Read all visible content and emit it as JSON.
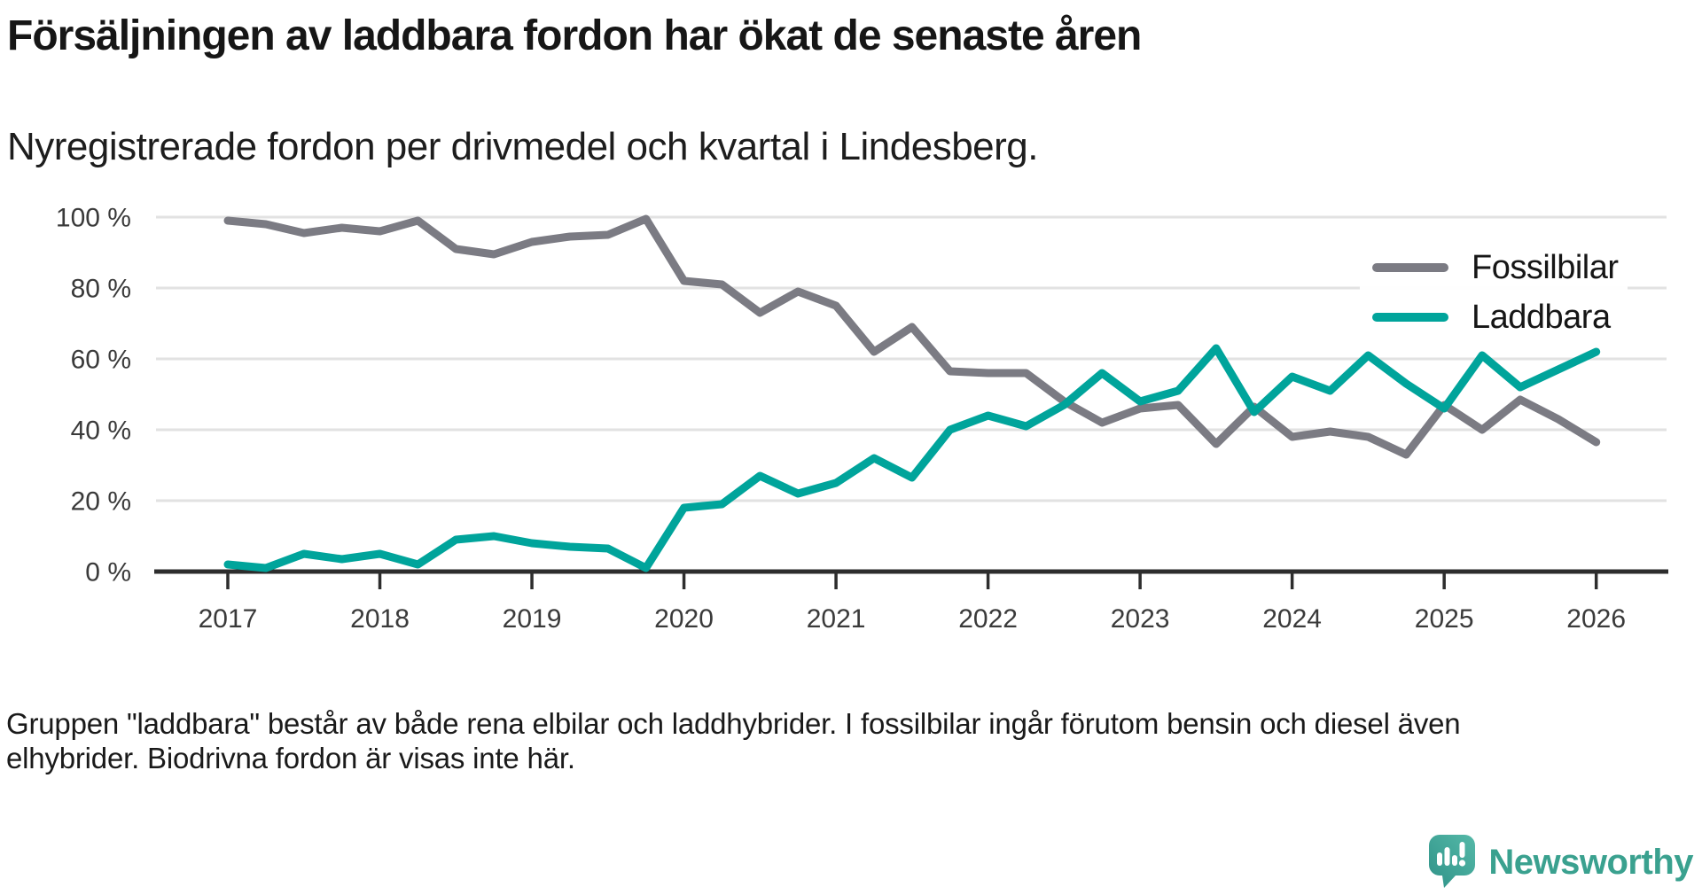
{
  "chart_data": {
    "type": "line",
    "title": "Försäljningen av laddbara fordon har ökat de senaste åren",
    "subtitle": "Nyregistrerade fordon per drivmedel och kvartal i Lindesberg.",
    "unit": "%",
    "x_start": "2017-Q1",
    "x_freq": "quarterly",
    "x_tick_labels": [
      "2017",
      "2018",
      "2019",
      "2020",
      "2021",
      "2022",
      "2023",
      "2024",
      "2025",
      "2026"
    ],
    "ylim": [
      0,
      100
    ],
    "grid": "horizontal",
    "legend_position": "top-right",
    "y_ticks": [
      {
        "value": 0,
        "label": "0 %"
      },
      {
        "value": 20,
        "label": "20 %"
      },
      {
        "value": 40,
        "label": "40 %"
      },
      {
        "value": 60,
        "label": "60 %"
      },
      {
        "value": 80,
        "label": "80 %"
      },
      {
        "value": 100,
        "label": "100 %"
      }
    ],
    "series": [
      {
        "id": "fossilbilar",
        "name": "Fossilbilar",
        "color": "#7b7b83",
        "values": [
          99,
          98,
          95.5,
          97,
          96,
          99,
          91,
          89.5,
          93,
          94.5,
          95,
          99.5,
          82,
          81,
          73,
          79,
          75,
          62,
          69,
          56.5,
          56,
          56,
          48,
          42,
          46,
          47,
          36,
          46.5,
          38,
          39.5,
          38,
          33,
          47,
          40,
          48.5,
          43,
          36.5
        ]
      },
      {
        "id": "laddbara",
        "name": "Laddbara",
        "color": "#00a49b",
        "values": [
          2,
          1,
          5,
          3.5,
          5,
          2,
          9,
          10,
          8,
          7,
          6.5,
          1,
          18,
          19,
          27,
          22,
          25,
          32,
          26.5,
          40,
          44,
          41,
          47,
          56,
          48,
          51,
          63,
          45,
          55,
          51,
          61,
          53,
          46,
          61,
          52,
          57,
          62
        ]
      }
    ]
  },
  "footer": {
    "line1": "Gruppen \"laddbara\" består av både rena elbilar och laddhybrider. I fossilbilar ingår förutom bensin och diesel även",
    "line2": "elhybrider. Biodrivna fordon är visas inte här."
  },
  "logo": {
    "brand": "Newsworthy",
    "color": "#3aa18f"
  },
  "style_colors": {
    "grid": "#e2e2e2",
    "axis": "#2d2d2d",
    "tick_label": "#3a3a3a"
  }
}
